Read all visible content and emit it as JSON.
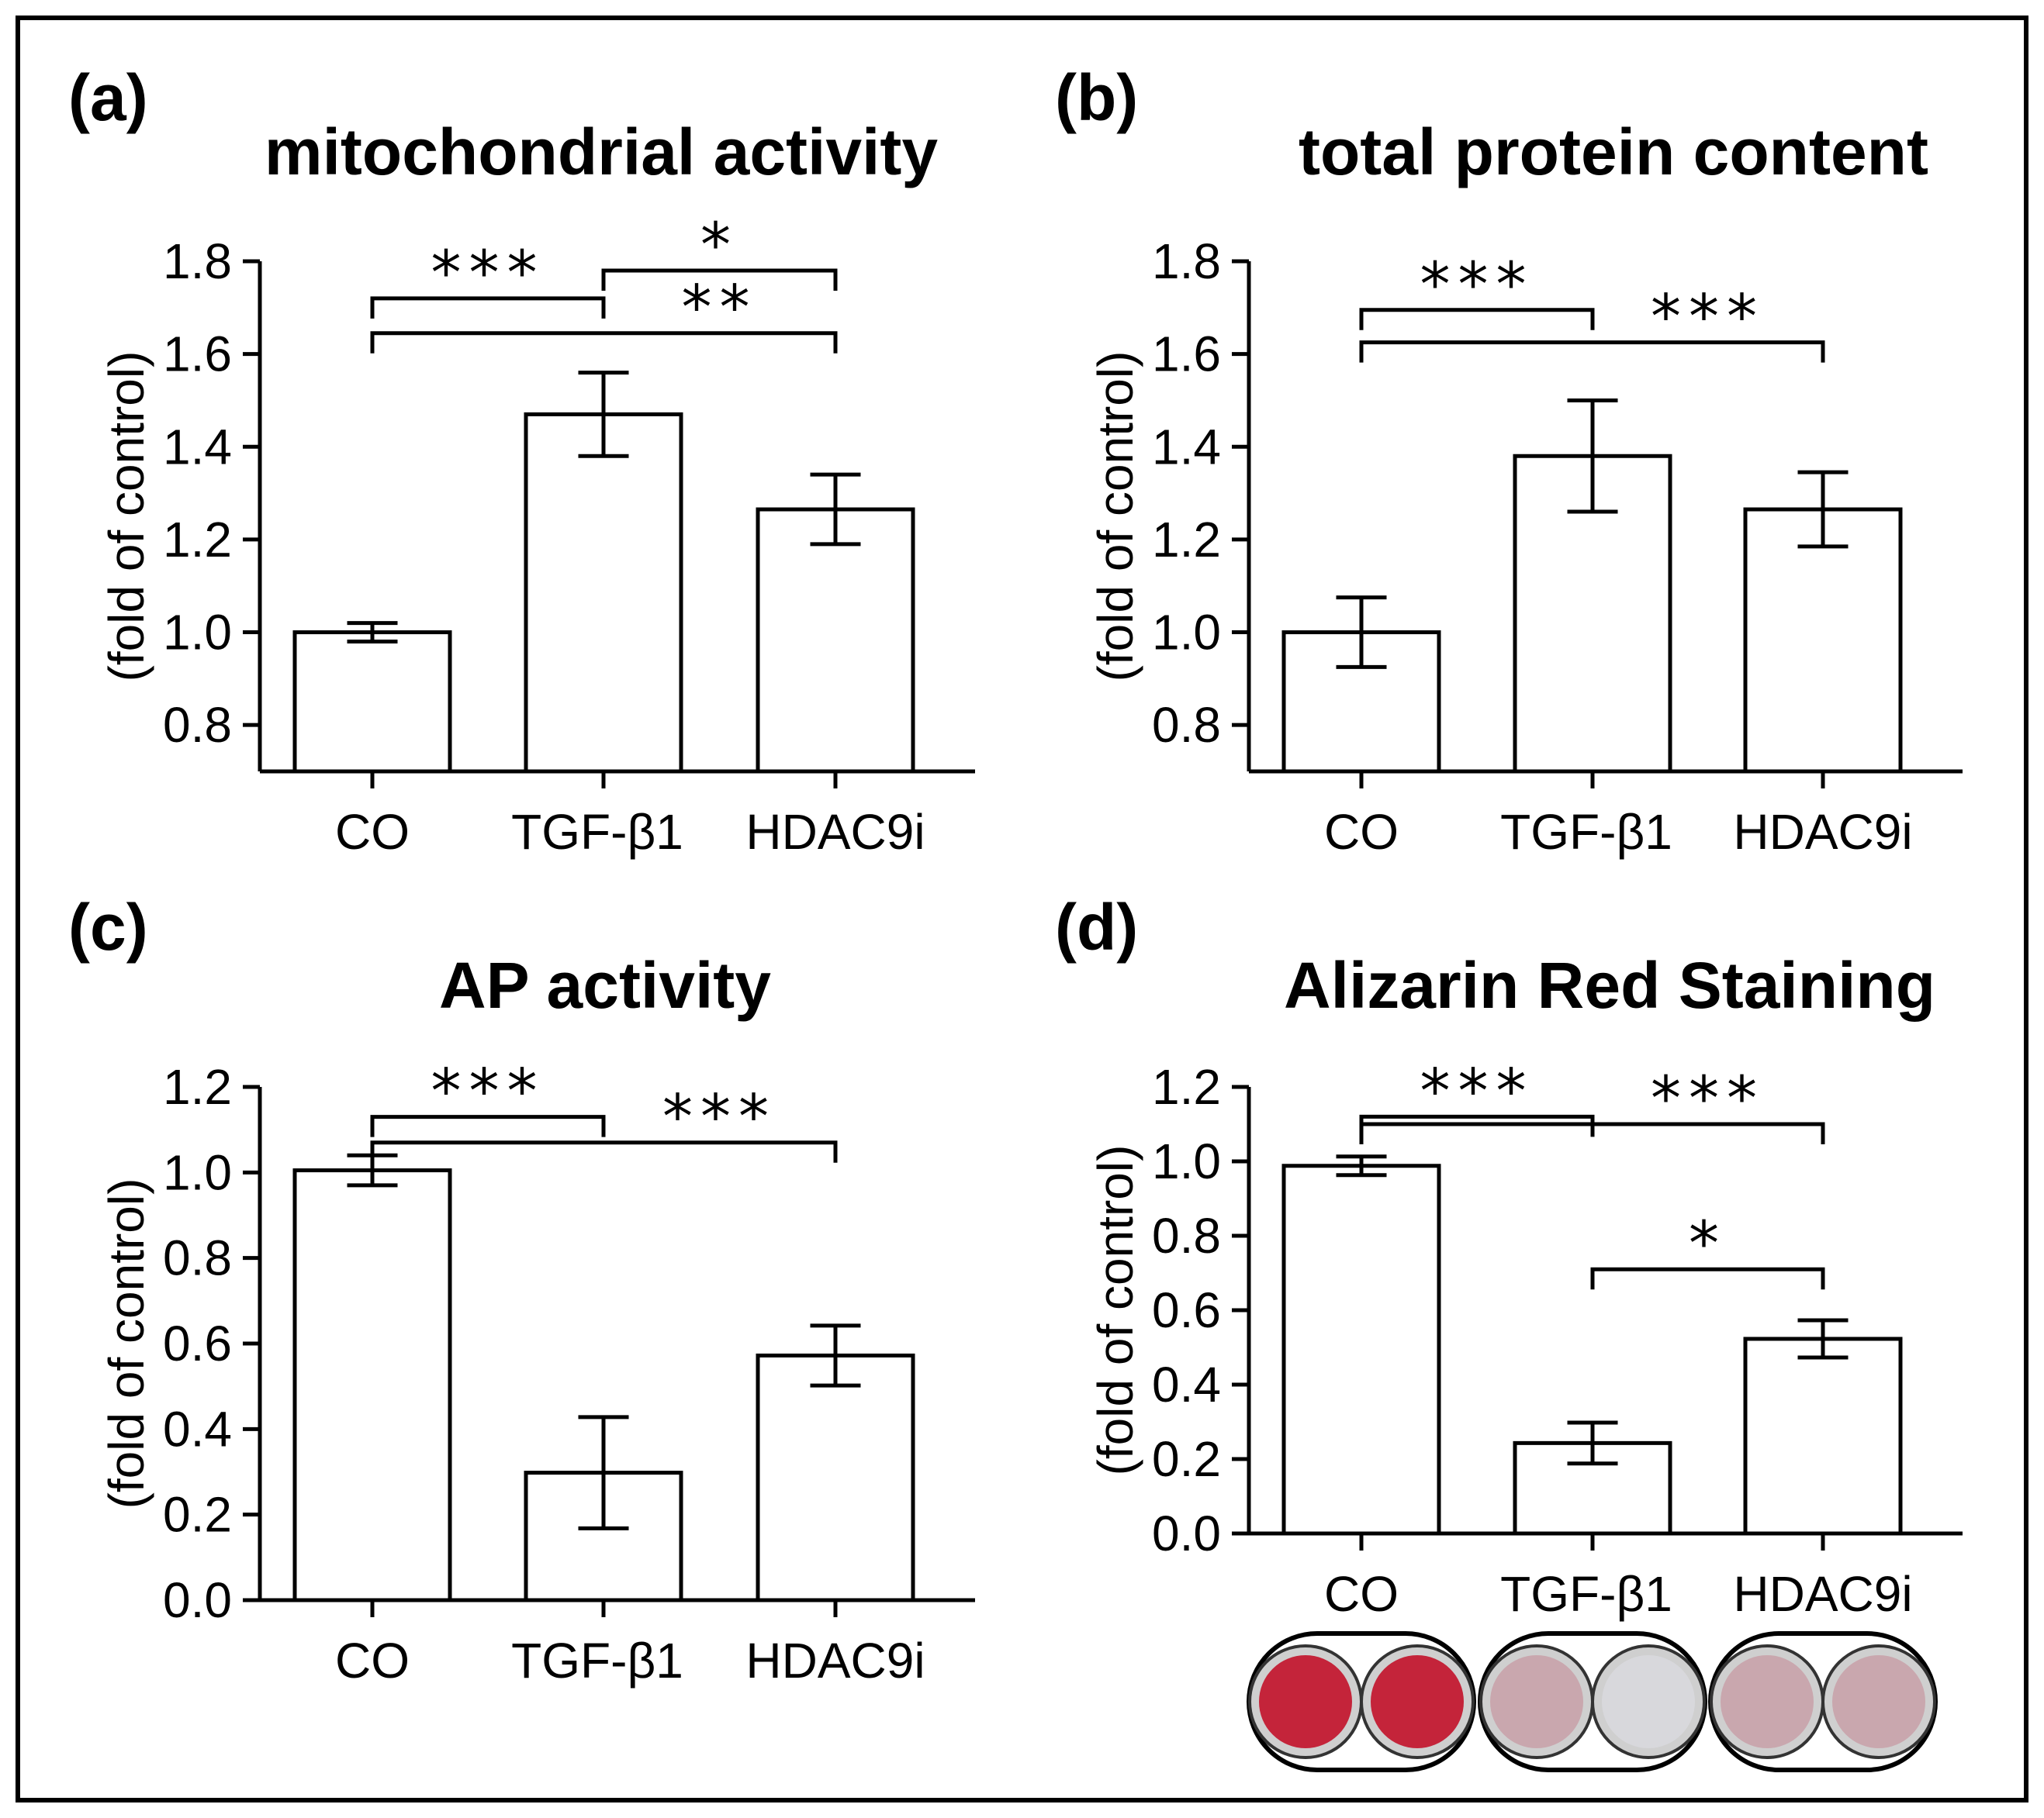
{
  "figure": {
    "accent_colors": {
      "alizarin_strong": "#c4243a",
      "alizarin_weak": "#c9a7ae",
      "well_empty": "#d8d8dc"
    }
  },
  "chart_data": [
    {
      "panel": "(a)",
      "type": "bar",
      "title": "mitochondrial activity",
      "ylabel": "(fold of control)",
      "xlabel": "",
      "categories": [
        "CO",
        "TGF-β1",
        "HDAC9i"
      ],
      "values": [
        1.0,
        1.47,
        1.265
      ],
      "errors": [
        0.02,
        0.09,
        0.075
      ],
      "ylim": [
        0.7,
        1.8
      ],
      "yticks": [
        "0.8",
        "1.0",
        "1.2",
        "1.4",
        "1.6",
        "1.8"
      ],
      "significance": [
        {
          "from": 0,
          "to": 1,
          "level": 1.72,
          "label": "***"
        },
        {
          "from": 1,
          "to": 2,
          "level": 1.78,
          "label": "*"
        },
        {
          "from": 0,
          "to": 2,
          "level": 1.645,
          "label": "**"
        }
      ]
    },
    {
      "panel": "(b)",
      "type": "bar",
      "title": "total protein content",
      "ylabel": "(fold of control)",
      "xlabel": "",
      "categories": [
        "CO",
        "TGF-β1",
        "HDAC9i"
      ],
      "values": [
        1.0,
        1.38,
        1.265
      ],
      "errors": [
        0.075,
        0.12,
        0.08
      ],
      "ylim": [
        0.7,
        1.8
      ],
      "yticks": [
        "0.8",
        "1.0",
        "1.2",
        "1.4",
        "1.6",
        "1.8"
      ],
      "significance": [
        {
          "from": 0,
          "to": 1,
          "level": 1.695,
          "label": "***"
        },
        {
          "from": 0,
          "to": 2,
          "level": 1.625,
          "label": "***"
        }
      ]
    },
    {
      "panel": "(c)",
      "type": "bar",
      "title": "AP activity",
      "ylabel": "(fold of control)",
      "xlabel": "",
      "categories": [
        "CO",
        "TGF-β1",
        "HDAC9i"
      ],
      "values": [
        1.005,
        0.298,
        0.572
      ],
      "errors": [
        0.035,
        0.13,
        0.07
      ],
      "ylim": [
        0.0,
        1.2
      ],
      "yticks": [
        "0.0",
        "0.2",
        "0.4",
        "0.6",
        "0.8",
        "1.0",
        "1.2"
      ],
      "significance": [
        {
          "from": 0,
          "to": 1,
          "level": 1.13,
          "label": "***"
        },
        {
          "from": 0,
          "to": 2,
          "level": 1.07,
          "label": "***"
        }
      ]
    },
    {
      "panel": "(d)",
      "type": "bar",
      "title": "Alizarin Red Staining",
      "ylabel": "(fold of control)",
      "xlabel": "",
      "categories": [
        "CO",
        "TGF-β1",
        "HDAC9i"
      ],
      "values": [
        0.988,
        0.243,
        0.523
      ],
      "errors": [
        0.025,
        0.055,
        0.05
      ],
      "ylim": [
        0.0,
        1.2
      ],
      "yticks": [
        "0.0",
        "0.2",
        "0.4",
        "0.6",
        "0.8",
        "1.0",
        "1.2"
      ],
      "significance": [
        {
          "from": 0,
          "to": 1,
          "level": 1.12,
          "label": "***"
        },
        {
          "from": 0,
          "to": 2,
          "level": 1.1,
          "label": "***"
        },
        {
          "from": 1,
          "to": 2,
          "level": 0.71,
          "label": "*"
        }
      ]
    }
  ]
}
